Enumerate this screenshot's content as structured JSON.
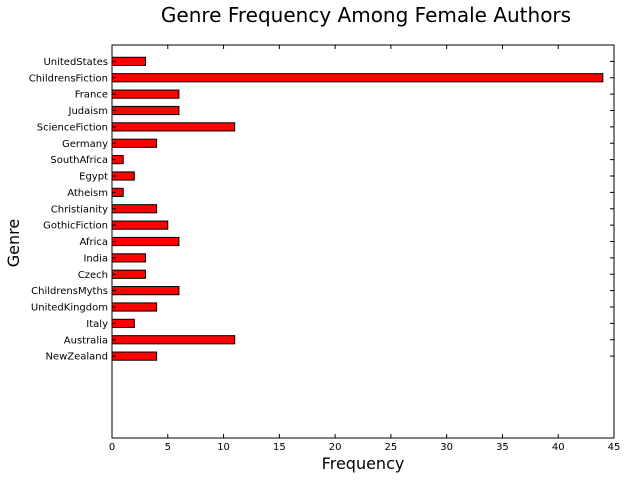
{
  "chart_data": {
    "type": "bar",
    "orientation": "horizontal",
    "title": "Genre Frequency Among Female Authors",
    "xlabel": "Frequency",
    "ylabel": "Genre",
    "xlim": [
      0,
      45
    ],
    "x_ticks": [
      0,
      5,
      10,
      15,
      20,
      25,
      30,
      35,
      40,
      45
    ],
    "grid": false,
    "legend": "none",
    "bar_color": "#ff0000",
    "bar_edge_color": "#000000",
    "categories": [
      "NewZealand",
      "Australia",
      "Italy",
      "UnitedKingdom",
      "ChildrensMyths",
      "Czech",
      "India",
      "Africa",
      "GothicFiction",
      "Christianity",
      "Atheism",
      "Egypt",
      "SouthAfrica",
      "Germany",
      "ScienceFiction",
      "Judaism",
      "France",
      "ChildrensFiction",
      "UnitedStates"
    ],
    "values": [
      4,
      11,
      2,
      4,
      6,
      3,
      3,
      6,
      5,
      4,
      1,
      2,
      1,
      4,
      11,
      6,
      6,
      44,
      3
    ]
  }
}
